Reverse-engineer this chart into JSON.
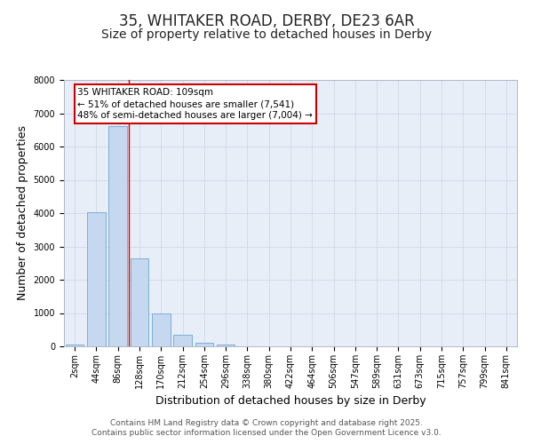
{
  "title": "35, WHITAKER ROAD, DERBY, DE23 6AR",
  "subtitle": "Size of property relative to detached houses in Derby",
  "xlabel": "Distribution of detached houses by size in Derby",
  "ylabel": "Number of detached properties",
  "bar_labels": [
    "2sqm",
    "44sqm",
    "86sqm",
    "128sqm",
    "170sqm",
    "212sqm",
    "254sqm",
    "296sqm",
    "338sqm",
    "380sqm",
    "422sqm",
    "464sqm",
    "506sqm",
    "547sqm",
    "589sqm",
    "631sqm",
    "673sqm",
    "715sqm",
    "757sqm",
    "799sqm",
    "841sqm"
  ],
  "bar_values": [
    60,
    4020,
    6620,
    2650,
    980,
    340,
    120,
    55,
    10,
    0,
    0,
    0,
    0,
    0,
    0,
    0,
    0,
    0,
    0,
    0,
    0
  ],
  "bar_color": "#c5d8f0",
  "bar_edge_color": "#7aafd4",
  "vline_x": 2.5,
  "vline_color": "#cc0000",
  "annotation_text": "35 WHITAKER ROAD: 109sqm\n← 51% of detached houses are smaller (7,541)\n48% of semi-detached houses are larger (7,004) →",
  "annotation_box_color": "#cc0000",
  "annotation_bg": "#ffffff",
  "ylim": [
    0,
    8000
  ],
  "yticks": [
    0,
    1000,
    2000,
    3000,
    4000,
    5000,
    6000,
    7000,
    8000
  ],
  "grid_color": "#d0d8e8",
  "plot_bg_color": "#e8eef8",
  "fig_bg_color": "#ffffff",
  "footer_line1": "Contains HM Land Registry data © Crown copyright and database right 2025.",
  "footer_line2": "Contains public sector information licensed under the Open Government Licence v3.0.",
  "title_fontsize": 12,
  "subtitle_fontsize": 10,
  "tick_fontsize": 7,
  "ylabel_fontsize": 9,
  "xlabel_fontsize": 9,
  "footer_fontsize": 6.5
}
